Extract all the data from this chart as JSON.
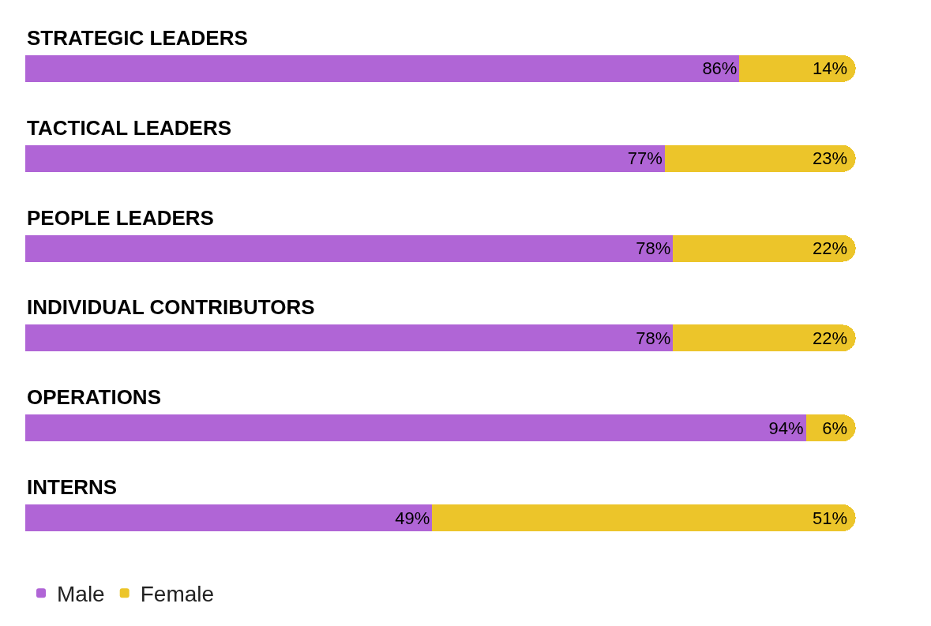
{
  "chart_data": {
    "type": "bar",
    "orientation": "horizontal",
    "stacked": true,
    "legend": "bottom left",
    "categories": [
      "STRATEGIC LEADERS",
      "TACTICAL LEADERS",
      "PEOPLE LEADERS",
      "INDIVIDUAL CONTRIBUTORS",
      "OPERATIONS",
      "INTERNS"
    ],
    "series": [
      {
        "name": "Male",
        "color": "#b065d6",
        "values": [
          86,
          77,
          78,
          78,
          94,
          49
        ],
        "value_labels": [
          "86%",
          "77%",
          "78%",
          "78%",
          "94%",
          "49%"
        ]
      },
      {
        "name": "Female",
        "color": "#ecc52a",
        "values": [
          14,
          23,
          22,
          22,
          6,
          51
        ],
        "value_labels": [
          "14%",
          "23%",
          "22%",
          "22%",
          "6%",
          "51%"
        ]
      }
    ]
  }
}
